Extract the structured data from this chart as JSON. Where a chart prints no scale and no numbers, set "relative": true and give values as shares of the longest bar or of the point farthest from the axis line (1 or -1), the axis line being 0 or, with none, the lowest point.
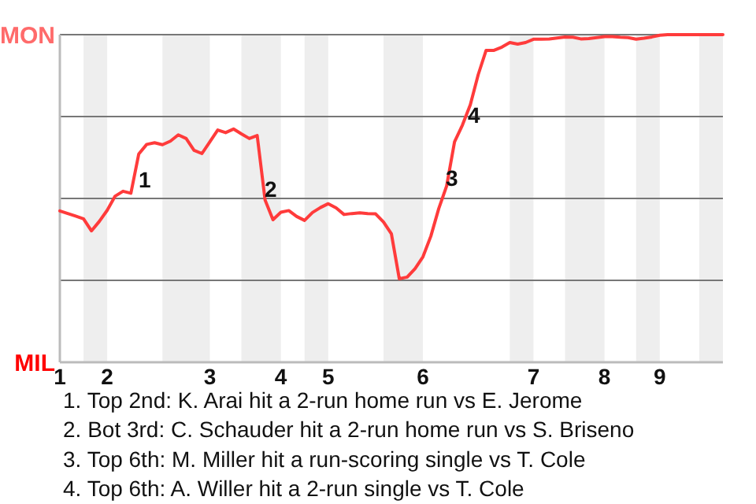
{
  "chart_data": {
    "type": "line",
    "relative": true,
    "categories": [
      "1",
      null,
      null,
      null,
      null,
      null,
      "2",
      null,
      null,
      null,
      null,
      null,
      null,
      null,
      null,
      null,
      null,
      null,
      null,
      "3",
      null,
      null,
      null,
      null,
      null,
      null,
      null,
      null,
      "4",
      null,
      null,
      null,
      null,
      null,
      "5",
      null,
      null,
      null,
      null,
      null,
      null,
      null,
      null,
      null,
      null,
      null,
      "6",
      null,
      null,
      null,
      null,
      null,
      null,
      null,
      null,
      null,
      null,
      null,
      null,
      null,
      "7",
      null,
      null,
      null,
      null,
      null,
      null,
      null,
      null,
      "8",
      null,
      null,
      null,
      null,
      null,
      null,
      "9",
      null,
      null,
      null,
      null,
      null,
      null,
      null,
      null
    ],
    "series": [
      {
        "color": "#ff3b3b",
        "values": [
          0.462,
          0.454,
          0.446,
          0.438,
          0.401,
          0.43,
          0.464,
          0.507,
          0.522,
          0.516,
          0.636,
          0.665,
          0.67,
          0.664,
          0.675,
          0.694,
          0.683,
          0.647,
          0.637,
          0.673,
          0.709,
          0.701,
          0.712,
          0.697,
          0.683,
          0.692,
          0.495,
          0.435,
          0.458,
          0.463,
          0.445,
          0.433,
          0.457,
          0.472,
          0.484,
          0.471,
          0.451,
          0.454,
          0.456,
          0.454,
          0.453,
          0.428,
          0.392,
          0.255,
          0.26,
          0.286,
          0.322,
          0.385,
          0.469,
          0.538,
          0.673,
          0.724,
          0.786,
          0.878,
          0.952,
          0.952,
          0.962,
          0.976,
          0.971,
          0.976,
          0.986,
          0.986,
          0.987,
          0.99,
          0.993,
          0.992,
          0.987,
          0.988,
          0.991,
          0.994,
          0.994,
          0.992,
          0.991,
          0.986,
          0.989,
          0.993,
          0.998,
          1,
          1,
          1,
          1,
          1,
          1,
          1,
          1
        ]
      }
    ],
    "grid": "y",
    "marker": "none",
    "line_style": "solid",
    "annotations": [
      "MON",
      "MIL",
      "1",
      "2",
      "3",
      "4",
      "1. Top 2nd: K. Arai hit a 2-run home run vs E. Jerome",
      "2. Bot 3rd: C. Schauder hit a 2-run home run vs S. Briseno",
      "3. Top 6th: M. Miller hit a run-scoring single vs T. Cole",
      "4. Top 6th: A. Willer hit a 2-run single vs T. Cole"
    ]
  }
}
